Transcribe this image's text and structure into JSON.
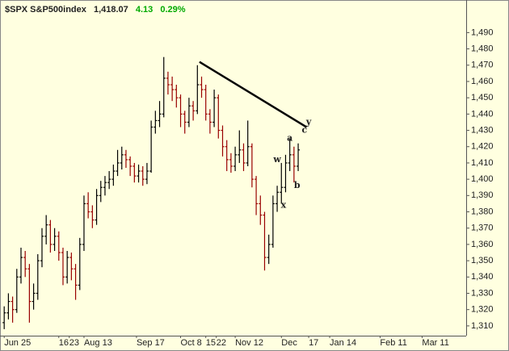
{
  "chart_data": {
    "type": "ohlc",
    "header": {
      "symbol": "$SPX S&P500index",
      "last": "1,418.07",
      "change": "4.13",
      "change_pct": "0.29%"
    },
    "up_color": "#000000",
    "down_color": "#990000",
    "x": [
      2,
      4,
      6,
      8,
      10,
      12,
      14,
      16,
      18,
      20,
      22,
      24,
      26,
      28,
      30,
      32,
      34,
      36,
      38,
      40,
      42,
      44,
      46,
      48,
      50,
      52,
      54,
      56,
      58,
      60,
      62,
      64,
      66,
      68,
      70,
      72,
      74,
      76,
      78,
      80,
      82,
      84,
      86,
      88,
      90,
      92,
      94,
      96,
      98,
      100,
      102,
      104,
      106,
      108,
      110,
      112,
      114,
      116,
      118,
      120,
      122,
      124,
      126,
      128,
      130,
      132,
      134,
      136,
      138,
      140,
      142
    ],
    "open": [
      1312,
      1318,
      1325,
      1320,
      1340,
      1352,
      1345,
      1325,
      1330,
      1350,
      1365,
      1372,
      1360,
      1365,
      1355,
      1340,
      1352,
      1345,
      1335,
      1360,
      1385,
      1380,
      1375,
      1390,
      1395,
      1398,
      1400,
      1405,
      1410,
      1415,
      1412,
      1408,
      1402,
      1405,
      1400,
      1405,
      1432,
      1436,
      1440,
      1462,
      1458,
      1455,
      1450,
      1440,
      1435,
      1445,
      1442,
      1458,
      1455,
      1440,
      1435,
      1450,
      1430,
      1420,
      1412,
      1408,
      1415,
      1418,
      1410,
      1420,
      1400,
      1385,
      1378,
      1352,
      1360,
      1385,
      1392,
      1395,
      1410,
      1415,
      1408
    ],
    "high": [
      1322,
      1330,
      1328,
      1345,
      1358,
      1356,
      1348,
      1336,
      1354,
      1370,
      1378,
      1375,
      1370,
      1368,
      1358,
      1356,
      1355,
      1348,
      1364,
      1390,
      1392,
      1384,
      1394,
      1399,
      1402,
      1405,
      1409,
      1418,
      1420,
      1418,
      1414,
      1410,
      1409,
      1408,
      1410,
      1436,
      1442,
      1448,
      1475,
      1466,
      1463,
      1458,
      1452,
      1442,
      1450,
      1448,
      1470,
      1463,
      1458,
      1443,
      1455,
      1452,
      1433,
      1424,
      1416,
      1420,
      1430,
      1422,
      1436,
      1422,
      1402,
      1390,
      1380,
      1366,
      1390,
      1396,
      1410,
      1415,
      1425,
      1420,
      1422
    ],
    "low": [
      1308,
      1314,
      1312,
      1318,
      1336,
      1340,
      1312,
      1320,
      1326,
      1346,
      1360,
      1355,
      1356,
      1350,
      1335,
      1336,
      1338,
      1326,
      1332,
      1356,
      1376,
      1370,
      1372,
      1386,
      1390,
      1394,
      1396,
      1402,
      1406,
      1407,
      1402,
      1398,
      1398,
      1396,
      1397,
      1404,
      1428,
      1432,
      1438,
      1452,
      1448,
      1444,
      1432,
      1428,
      1432,
      1436,
      1440,
      1450,
      1436,
      1428,
      1432,
      1425,
      1414,
      1405,
      1404,
      1405,
      1410,
      1405,
      1408,
      1395,
      1378,
      1372,
      1344,
      1348,
      1358,
      1380,
      1385,
      1392,
      1405,
      1398,
      1405
    ],
    "close": [
      1318,
      1325,
      1320,
      1340,
      1352,
      1345,
      1325,
      1330,
      1350,
      1365,
      1372,
      1360,
      1365,
      1355,
      1340,
      1352,
      1345,
      1335,
      1360,
      1385,
      1380,
      1375,
      1390,
      1395,
      1398,
      1400,
      1405,
      1410,
      1415,
      1412,
      1408,
      1402,
      1405,
      1400,
      1405,
      1432,
      1436,
      1440,
      1462,
      1458,
      1455,
      1450,
      1440,
      1435,
      1445,
      1442,
      1458,
      1455,
      1440,
      1435,
      1450,
      1430,
      1420,
      1412,
      1408,
      1415,
      1418,
      1410,
      1420,
      1400,
      1385,
      1378,
      1352,
      1360,
      1385,
      1392,
      1395,
      1410,
      1415,
      1408,
      1418
    ],
    "xlim": [
      0,
      222
    ],
    "ylim": [
      1304,
      1510
    ],
    "xticks": [
      {
        "value": 2,
        "label": "Jun 25"
      },
      {
        "value": 28,
        "label": "16"
      },
      {
        "value": 33,
        "label": "23"
      },
      {
        "value": 40,
        "label": "Aug 13"
      },
      {
        "value": 65,
        "label": "Sep 17"
      },
      {
        "value": 86,
        "label": "Oct 8"
      },
      {
        "value": 98,
        "label": "15"
      },
      {
        "value": 103,
        "label": "22"
      },
      {
        "value": 112,
        "label": "Nov 12"
      },
      {
        "value": 134,
        "label": "Dec"
      },
      {
        "value": 147,
        "label": "17"
      },
      {
        "value": 157,
        "label": "Jan 14"
      },
      {
        "value": 181,
        "label": "Feb 11"
      },
      {
        "value": 201,
        "label": "Mar 11"
      }
    ],
    "yticks": [
      {
        "value": 1310,
        "label": "1,310"
      },
      {
        "value": 1320,
        "label": "1,320"
      },
      {
        "value": 1330,
        "label": "1,330"
      },
      {
        "value": 1340,
        "label": "1,340"
      },
      {
        "value": 1350,
        "label": "1,350"
      },
      {
        "value": 1360,
        "label": "1,360"
      },
      {
        "value": 1370,
        "label": "1,370"
      },
      {
        "value": 1380,
        "label": "1,380"
      },
      {
        "value": 1390,
        "label": "1,390"
      },
      {
        "value": 1400,
        "label": "1,400"
      },
      {
        "value": 1410,
        "label": "1,410"
      },
      {
        "value": 1420,
        "label": "1,420"
      },
      {
        "value": 1430,
        "label": "1,430"
      },
      {
        "value": 1440,
        "label": "1,440"
      },
      {
        "value": 1450,
        "label": "1,450"
      },
      {
        "value": 1460,
        "label": "1,460"
      },
      {
        "value": 1470,
        "label": "1,470"
      },
      {
        "value": 1480,
        "label": "1,480"
      },
      {
        "value": 1490,
        "label": "1,490"
      }
    ],
    "trendline": {
      "x": [
        95,
        146
      ],
      "y": [
        1472,
        1432
      ],
      "color": "#000000"
    },
    "annotations": [
      {
        "text": "w",
        "x": 132,
        "y": 1412,
        "color": "#0000cc"
      },
      {
        "text": "x",
        "x": 135,
        "y": 1384,
        "color": "#0000cc"
      },
      {
        "text": "y",
        "x": 147,
        "y": 1435,
        "color": "#0000cc"
      },
      {
        "text": "a",
        "x": 138,
        "y": 1425,
        "color": "#220000"
      },
      {
        "text": "b",
        "x": 141.5,
        "y": 1396,
        "color": "#220000"
      },
      {
        "text": "c",
        "x": 145,
        "y": 1430,
        "color": "#220000"
      }
    ]
  }
}
